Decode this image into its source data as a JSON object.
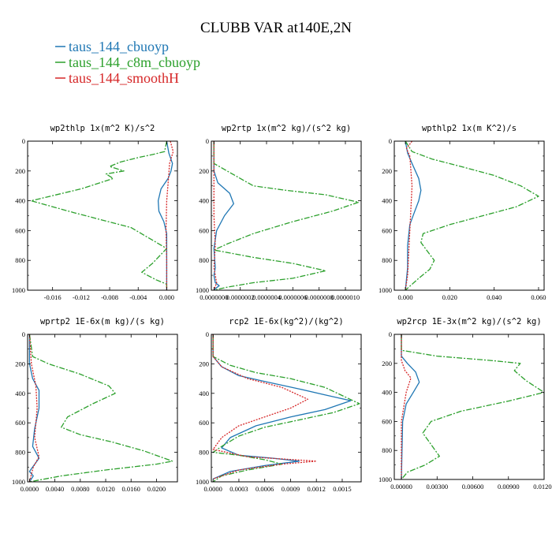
{
  "title": "CLUBB VAR at140E,2N",
  "legend": [
    {
      "label": "taus_144_cbuoyp",
      "color": "#1f77b4",
      "dash": "solid"
    },
    {
      "label": "taus_144_c8m_cbuoyp",
      "color": "#2ca02c",
      "dash": "dashdot"
    },
    {
      "label": "taus_144_smoothH",
      "color": "#d62728",
      "dash": "dotted"
    }
  ],
  "chart_data": [
    {
      "type": "line",
      "title": "wp2thlp  1x(m^2 K)/s^2",
      "xlim": [
        -0.0195,
        0.0015
      ],
      "xticks": [
        -0.016,
        -0.012,
        -0.008,
        -0.004,
        0.0
      ],
      "xtick_labels": [
        "-0.016",
        "-0.012",
        "-0.008",
        "-0.004",
        "0.000"
      ],
      "ylim": [
        1000,
        0
      ],
      "yticks": [
        0,
        200,
        400,
        600,
        800,
        1000
      ],
      "ytick_labels": [
        "0",
        "200",
        "400",
        "600",
        "800",
        "1000"
      ],
      "series": [
        {
          "name": "taus_144_cbuoyp",
          "x": [
            0.0,
            0.0003,
            0.0008,
            0.0006,
            0.0002,
            -0.0008,
            -0.0012,
            -0.0011,
            -0.0004,
            0.0,
            0.0,
            0.0
          ],
          "y": [
            0,
            80,
            150,
            200,
            250,
            320,
            400,
            470,
            540,
            620,
            750,
            1000
          ]
        },
        {
          "name": "taus_144_c8m_cbuoyp",
          "x": [
            0.0,
            -0.0003,
            -0.002,
            -0.004,
            -0.0065,
            -0.008,
            -0.006,
            -0.0085,
            -0.0075,
            -0.012,
            -0.019,
            -0.013,
            -0.005,
            0.0,
            -0.002,
            -0.0035,
            -0.0015,
            0.0,
            0.0
          ],
          "y": [
            0,
            70,
            90,
            110,
            140,
            170,
            200,
            220,
            250,
            320,
            400,
            480,
            580,
            720,
            820,
            880,
            930,
            960,
            1000
          ]
        },
        {
          "name": "taus_144_smoothH",
          "x": [
            0.0005,
            0.0009,
            0.0004,
            0.0003,
            0.0,
            -0.0001,
            0.0,
            0.0
          ],
          "y": [
            0,
            70,
            150,
            220,
            400,
            600,
            800,
            1000
          ]
        }
      ]
    },
    {
      "type": "line",
      "title": "wp2rtp  1x(m^2 kg)/(s^2 kg)",
      "xlim": [
        -2e-08,
        1.12e-06
      ],
      "xticks": [
        0.0,
        2e-07,
        4e-07,
        6e-07,
        8e-07,
        1e-06
      ],
      "xtick_labels": [
        "0.0000000",
        "0.0000002",
        "0.0000004",
        "0.0000006",
        "0.0000008",
        "0.0000010"
      ],
      "ylim": [
        1000,
        0
      ],
      "yticks": [
        0,
        200,
        400,
        600,
        800,
        1000
      ],
      "ytick_labels": [
        "0",
        "200",
        "400",
        "600",
        "800",
        "1000"
      ],
      "series": [
        {
          "name": "taus_144_cbuoyp",
          "x": [
            0.0,
            0.0,
            3e-08,
            1.2e-07,
            1.5e-07,
            8e-08,
            2e-08,
            0.0,
            1e-08,
            0.0,
            1e-08,
            4e-08,
            1e-08,
            0.0
          ],
          "y": [
            0,
            200,
            280,
            350,
            420,
            500,
            600,
            720,
            850,
            900,
            950,
            970,
            990,
            1000
          ]
        },
        {
          "name": "taus_144_c8m_cbuoyp",
          "x": [
            0.0,
            0.0,
            1e-07,
            2e-07,
            3e-07,
            5.5e-07,
            8.5e-07,
            1.1e-06,
            9e-07,
            6e-07,
            3e-07,
            1e-07,
            0.0,
            3e-07,
            6e-07,
            8.5e-07,
            6e-07,
            3e-07,
            1e-07,
            0.0
          ],
          "y": [
            0,
            150,
            200,
            250,
            300,
            330,
            360,
            410,
            470,
            540,
            620,
            690,
            730,
            780,
            820,
            870,
            920,
            950,
            980,
            1000
          ]
        },
        {
          "name": "taus_144_smoothH",
          "x": [
            0.0,
            0.0,
            1e-08,
            0.0,
            2e-08,
            0.0
          ],
          "y": [
            0,
            500,
            700,
            850,
            950,
            1000
          ]
        }
      ]
    },
    {
      "type": "line",
      "title": "wpthlp2  1x(m K^2)/s",
      "xlim": [
        -0.005,
        0.0625
      ],
      "xticks": [
        0.0,
        0.02,
        0.04,
        0.06
      ],
      "xtick_labels": [
        "0.000",
        "0.020",
        "0.040",
        "0.060"
      ],
      "ylim": [
        1000,
        0
      ],
      "yticks": [
        0,
        200,
        400,
        600,
        800,
        1000
      ],
      "ytick_labels": [
        "0",
        "200",
        "400",
        "600",
        "800",
        "1000"
      ],
      "series": [
        {
          "name": "taus_144_cbuoyp",
          "x": [
            0.0,
            0.001,
            0.003,
            0.006,
            0.007,
            0.006,
            0.004,
            0.002,
            0.001,
            0.001,
            0.0
          ],
          "y": [
            0,
            80,
            150,
            250,
            330,
            400,
            480,
            560,
            700,
            850,
            1000
          ]
        },
        {
          "name": "taus_144_c8m_cbuoyp",
          "x": [
            0.0,
            0.003,
            0.012,
            0.025,
            0.04,
            0.052,
            0.06,
            0.05,
            0.035,
            0.02,
            0.008,
            0.007,
            0.01,
            0.013,
            0.011,
            0.006,
            0.0
          ],
          "y": [
            0,
            70,
            120,
            170,
            230,
            300,
            370,
            440,
            500,
            560,
            620,
            680,
            740,
            800,
            860,
            920,
            1000
          ]
        },
        {
          "name": "taus_144_smoothH",
          "x": [
            0.003,
            0.0005,
            0.002,
            0.003,
            0.002,
            0.001,
            0.0
          ],
          "y": [
            0,
            50,
            100,
            300,
            600,
            900,
            1000
          ]
        }
      ]
    },
    {
      "type": "line",
      "title": "wprtp2  1E-6x(m kg)/(s kg)",
      "xlim": [
        -0.0003,
        0.0233
      ],
      "xticks": [
        0.0,
        0.004,
        0.008,
        0.012,
        0.016,
        0.02
      ],
      "xtick_labels": [
        "0.0000",
        "0.0040",
        "0.0080",
        "0.0120",
        "0.0160",
        "0.0200"
      ],
      "ylim": [
        1000,
        0
      ],
      "yticks": [
        0,
        200,
        400,
        600,
        800,
        1000
      ],
      "ytick_labels": [
        "0",
        "200",
        "400",
        "600",
        "800",
        "1000"
      ],
      "series": [
        {
          "name": "taus_144_cbuoyp",
          "x": [
            0.0,
            0.0,
            0.0005,
            0.0015,
            0.0015,
            0.0008,
            0.0005,
            0.0015,
            0.0005,
            0.0,
            0.0006,
            0.0
          ],
          "y": [
            0,
            200,
            300,
            380,
            500,
            640,
            760,
            840,
            900,
            930,
            960,
            1000
          ]
        },
        {
          "name": "taus_144_c8m_cbuoyp",
          "x": [
            0.0,
            0.0005,
            0.003,
            0.008,
            0.0125,
            0.0135,
            0.01,
            0.006,
            0.005,
            0.008,
            0.013,
            0.018,
            0.0225,
            0.02,
            0.012,
            0.005,
            0.0
          ],
          "y": [
            0,
            150,
            200,
            270,
            350,
            400,
            470,
            560,
            630,
            680,
            730,
            790,
            860,
            880,
            920,
            960,
            1000
          ]
        },
        {
          "name": "taus_144_smoothH",
          "x": [
            0.0,
            0.0003,
            0.001,
            0.0012,
            0.0008,
            0.0015,
            0.0006,
            0.0
          ],
          "y": [
            0,
            200,
            350,
            500,
            700,
            830,
            900,
            1000
          ]
        }
      ]
    },
    {
      "type": "line",
      "title": "rcp2  1E-6x(kg^2)/(kg^2)",
      "xlim": [
        -2e-05,
        0.00172
      ],
      "xticks": [
        0.0,
        0.0003,
        0.0006,
        0.0009,
        0.0012,
        0.0015
      ],
      "xtick_labels": [
        "0.0000",
        "0.0003",
        "0.0006",
        "0.0009",
        "0.0012",
        "0.0015"
      ],
      "ylim": [
        1000,
        0
      ],
      "yticks": [
        0,
        200,
        400,
        600,
        800,
        1000
      ],
      "ytick_labels": [
        "0",
        "200",
        "400",
        "600",
        "800",
        "1000"
      ],
      "series": [
        {
          "name": "taus_144_cbuoyp",
          "x": [
            0.0,
            0.0,
            0.0001,
            0.0003,
            0.0006,
            0.001,
            0.0013,
            0.0016,
            0.0013,
            0.0009,
            0.0005,
            0.0002,
            0.0001,
            0.0003,
            0.0007,
            0.001,
            0.0006,
            0.0002,
            0.0
          ],
          "y": [
            0,
            150,
            220,
            280,
            320,
            370,
            410,
            450,
            510,
            560,
            620,
            700,
            770,
            820,
            840,
            860,
            890,
            930,
            980
          ]
        },
        {
          "name": "taus_144_c8m_cbuoyp",
          "x": [
            0.0,
            0.0,
            0.0002,
            0.0005,
            0.0009,
            0.0013,
            0.0017,
            0.0014,
            0.001,
            0.0006,
            0.0003,
            0.0001,
            0.0,
            0.0003,
            0.0006,
            0.0008,
            0.0004,
            0.0001,
            0.0
          ],
          "y": [
            0,
            150,
            210,
            260,
            300,
            360,
            470,
            530,
            580,
            630,
            690,
            760,
            800,
            820,
            850,
            880,
            920,
            960,
            1000
          ]
        },
        {
          "name": "taus_144_smoothH",
          "x": [
            0.0,
            0.0,
            0.0001,
            0.0004,
            0.0008,
            0.0011,
            0.0009,
            0.0006,
            0.0003,
            0.0001,
            0.0,
            0.0004,
            0.0012,
            0.0008,
            0.0003,
            0.0
          ],
          "y": [
            0,
            150,
            220,
            300,
            360,
            440,
            500,
            560,
            620,
            700,
            780,
            830,
            860,
            880,
            920,
            980
          ]
        }
      ]
    },
    {
      "type": "line",
      "title": "wp2rcp  1E-3x(m^2 kg)/(s^2 kg)",
      "xlim": [
        -0.0006,
        0.012
      ],
      "xticks": [
        0.0,
        0.003,
        0.006,
        0.009,
        0.012
      ],
      "xtick_labels": [
        "0.00000",
        "0.00300",
        "0.00600",
        "0.00900",
        "0.01200"
      ],
      "ylim": [
        1000,
        0
      ],
      "yticks": [
        0,
        200,
        400,
        600,
        800,
        1000
      ],
      "ytick_labels": [
        "0",
        "200",
        "400",
        "600",
        "800",
        "1000"
      ],
      "series": [
        {
          "name": "taus_144_cbuoyp",
          "x": [
            0.0,
            0.0,
            0.0005,
            0.0012,
            0.0015,
            0.001,
            0.0004,
            0.0001,
            0.0
          ],
          "y": [
            0,
            150,
            200,
            260,
            330,
            400,
            480,
            600,
            1000
          ]
        },
        {
          "name": "taus_144_c8m_cbuoyp",
          "x": [
            0.0,
            0.0,
            0.003,
            0.0075,
            0.01,
            0.0095,
            0.0105,
            0.012,
            0.009,
            0.005,
            0.0025,
            0.0018,
            0.0025,
            0.0032,
            0.002,
            0.0005,
            0.0
          ],
          "y": [
            0,
            110,
            150,
            180,
            200,
            250,
            320,
            400,
            460,
            530,
            600,
            680,
            760,
            840,
            900,
            950,
            1000
          ]
        },
        {
          "name": "taus_144_smoothH",
          "x": [
            0.0,
            0.0,
            0.0003,
            0.0008,
            0.0004,
            0.0,
            0.0
          ],
          "y": [
            0,
            180,
            250,
            300,
            400,
            600,
            1000
          ]
        }
      ]
    }
  ]
}
